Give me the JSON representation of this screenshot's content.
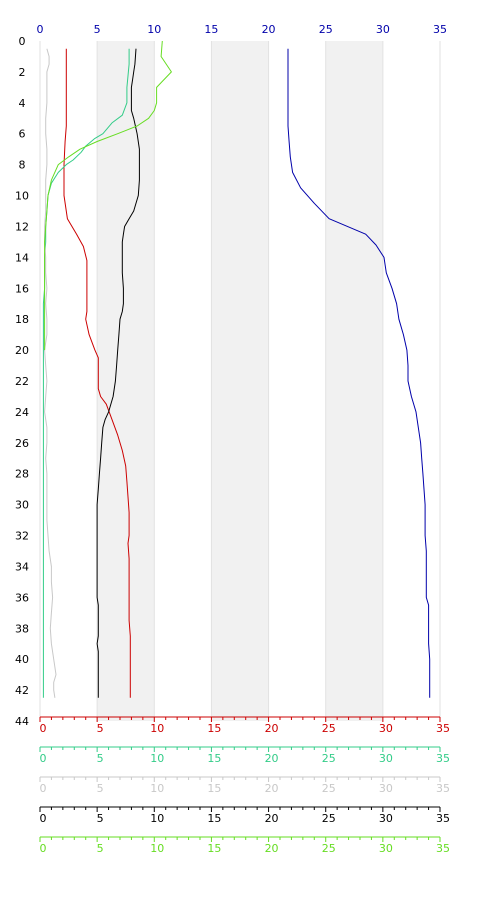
{
  "chart_data": {
    "type": "line",
    "title": "",
    "ylim": [
      44,
      0
    ],
    "xlim": [
      0,
      35
    ],
    "y_ticks": [
      "0",
      "2",
      "4",
      "6",
      "8",
      "10",
      "12",
      "14",
      "16",
      "18",
      "20",
      "22",
      "24",
      "26",
      "28",
      "30",
      "32",
      "34",
      "36",
      "38",
      "40",
      "42",
      "44"
    ],
    "x_ticks": [
      "0",
      "5",
      "10",
      "15",
      "20",
      "25",
      "30",
      "35"
    ],
    "grid": "alternating vertical bands",
    "axis_colors": {
      "top": "#0000aa",
      "red": "#cc0000",
      "teal": "#33cc88",
      "gray": "#c8c8c8",
      "black": "#000000",
      "green": "#66dd22"
    },
    "axes": [
      {
        "id": "red",
        "color": "#cc0000"
      },
      {
        "id": "teal",
        "color": "#33cc88"
      },
      {
        "id": "gray",
        "color": "#c8c8c8"
      },
      {
        "id": "black",
        "color": "#000000"
      },
      {
        "id": "green",
        "color": "#66dd22"
      }
    ],
    "series": [
      {
        "color": "#0000aa",
        "points": [
          [
            21.7,
            0.5
          ],
          [
            21.7,
            2
          ],
          [
            21.7,
            4
          ],
          [
            21.7,
            5.5
          ],
          [
            21.8,
            6.5
          ],
          [
            21.9,
            7.5
          ],
          [
            22.1,
            8.5
          ],
          [
            22.8,
            9.5
          ],
          [
            24,
            10.5
          ],
          [
            25.3,
            11.5
          ],
          [
            28.5,
            12.5
          ],
          [
            29.4,
            13.2
          ],
          [
            30.1,
            14
          ],
          [
            30.3,
            15
          ],
          [
            30.8,
            16
          ],
          [
            31.2,
            17
          ],
          [
            31.4,
            18
          ],
          [
            31.8,
            19
          ],
          [
            32.1,
            20
          ],
          [
            32.2,
            21
          ],
          [
            32.2,
            22
          ],
          [
            32.5,
            23
          ],
          [
            32.9,
            24
          ],
          [
            33.1,
            25
          ],
          [
            33.3,
            26
          ],
          [
            33.4,
            27
          ],
          [
            33.5,
            28
          ],
          [
            33.6,
            29
          ],
          [
            33.7,
            30
          ],
          [
            33.7,
            31
          ],
          [
            33.7,
            32
          ],
          [
            33.8,
            33
          ],
          [
            33.8,
            34
          ],
          [
            33.8,
            35
          ],
          [
            33.8,
            36
          ],
          [
            34,
            36.5
          ],
          [
            34,
            37
          ],
          [
            34,
            38
          ],
          [
            34,
            39
          ],
          [
            34.1,
            40
          ],
          [
            34.1,
            41
          ],
          [
            34.1,
            42
          ],
          [
            34.1,
            42.5
          ]
        ]
      },
      {
        "color": "#cc0000",
        "points": [
          [
            2.3,
            0.5
          ],
          [
            2.3,
            2
          ],
          [
            2.3,
            4
          ],
          [
            2.3,
            5.5
          ],
          [
            2.2,
            6.5
          ],
          [
            2.1,
            8
          ],
          [
            2.1,
            10
          ],
          [
            2.4,
            11.5
          ],
          [
            3.2,
            12.5
          ],
          [
            3.8,
            13.3
          ],
          [
            4.1,
            14.2
          ],
          [
            4.1,
            15.5
          ],
          [
            4.1,
            16.5
          ],
          [
            4.1,
            17.5
          ],
          [
            4,
            18
          ],
          [
            4.3,
            19
          ],
          [
            4.8,
            20
          ],
          [
            5.1,
            20.5
          ],
          [
            5.1,
            21.5
          ],
          [
            5.1,
            22.5
          ],
          [
            5.3,
            23
          ],
          [
            5.8,
            23.5
          ],
          [
            6.3,
            24.5
          ],
          [
            6.8,
            25.5
          ],
          [
            7.2,
            26.5
          ],
          [
            7.5,
            27.5
          ],
          [
            7.6,
            28.5
          ],
          [
            7.7,
            29.5
          ],
          [
            7.8,
            30.5
          ],
          [
            7.8,
            31.5
          ],
          [
            7.8,
            32
          ],
          [
            7.7,
            32.5
          ],
          [
            7.8,
            33.5
          ],
          [
            7.8,
            34.5
          ],
          [
            7.8,
            36
          ],
          [
            7.8,
            37.5
          ],
          [
            7.9,
            38.5
          ],
          [
            7.9,
            40
          ],
          [
            7.9,
            41
          ],
          [
            7.9,
            42.5
          ]
        ]
      },
      {
        "color": "#33cc88",
        "points": [
          [
            7.8,
            0.5
          ],
          [
            7.8,
            1.5
          ],
          [
            7.6,
            3
          ],
          [
            7.6,
            4
          ],
          [
            7.2,
            4.8
          ],
          [
            6.3,
            5.3
          ],
          [
            5.5,
            6
          ],
          [
            4.8,
            6.3
          ],
          [
            4,
            6.8
          ],
          [
            3.6,
            7.2
          ],
          [
            2.9,
            7.7
          ],
          [
            2.3,
            8
          ],
          [
            1.6,
            8.5
          ],
          [
            1,
            9.2
          ],
          [
            0.7,
            10
          ],
          [
            0.6,
            11
          ],
          [
            0.5,
            12
          ],
          [
            0.5,
            13
          ],
          [
            0.4,
            14
          ],
          [
            0.4,
            15
          ],
          [
            0.4,
            16
          ],
          [
            0.3,
            17
          ],
          [
            0.3,
            18
          ],
          [
            0.3,
            20
          ],
          [
            0.3,
            22
          ],
          [
            0.3,
            24
          ],
          [
            0.3,
            26
          ],
          [
            0.3,
            28
          ],
          [
            0.3,
            30
          ],
          [
            0.3,
            32
          ],
          [
            0.3,
            34
          ],
          [
            0.3,
            36
          ],
          [
            0.3,
            38
          ],
          [
            0.3,
            40
          ],
          [
            0.3,
            42
          ],
          [
            0.3,
            42.5
          ]
        ]
      },
      {
        "color": "#c8c8c8",
        "points": [
          [
            0.6,
            0.5
          ],
          [
            0.8,
            1
          ],
          [
            0.8,
            1.5
          ],
          [
            0.6,
            2
          ],
          [
            0.6,
            3
          ],
          [
            0.6,
            4
          ],
          [
            0.5,
            5
          ],
          [
            0.5,
            6
          ],
          [
            0.6,
            7
          ],
          [
            0.6,
            8
          ],
          [
            0.5,
            9
          ],
          [
            0.5,
            10
          ],
          [
            0.5,
            11
          ],
          [
            0.4,
            12
          ],
          [
            0.4,
            13
          ],
          [
            0.5,
            14
          ],
          [
            0.5,
            15
          ],
          [
            0.6,
            16
          ],
          [
            0.5,
            17
          ],
          [
            0.6,
            18
          ],
          [
            0.6,
            19
          ],
          [
            0.4,
            20
          ],
          [
            0.5,
            21
          ],
          [
            0.6,
            22
          ],
          [
            0.5,
            23
          ],
          [
            0.4,
            24
          ],
          [
            0.6,
            25
          ],
          [
            0.6,
            26
          ],
          [
            0.5,
            27
          ],
          [
            0.6,
            28
          ],
          [
            0.6,
            29
          ],
          [
            0.6,
            30
          ],
          [
            0.6,
            31
          ],
          [
            0.7,
            32
          ],
          [
            0.8,
            33
          ],
          [
            1,
            34
          ],
          [
            1,
            35
          ],
          [
            1.1,
            36
          ],
          [
            1,
            37
          ],
          [
            0.9,
            38
          ],
          [
            1,
            39
          ],
          [
            1.2,
            40
          ],
          [
            1.4,
            41
          ],
          [
            1.2,
            41.5
          ],
          [
            1.2,
            42
          ],
          [
            1.3,
            42.5
          ]
        ]
      },
      {
        "color": "#000000",
        "points": [
          [
            8.4,
            0.5
          ],
          [
            8.3,
            1.5
          ],
          [
            8.2,
            2
          ],
          [
            8.1,
            2.5
          ],
          [
            8,
            3
          ],
          [
            8,
            4
          ],
          [
            8,
            4.5
          ],
          [
            8.2,
            5
          ],
          [
            8.5,
            6
          ],
          [
            8.7,
            7
          ],
          [
            8.7,
            8
          ],
          [
            8.7,
            9
          ],
          [
            8.6,
            10
          ],
          [
            8.2,
            11
          ],
          [
            7.8,
            11.5
          ],
          [
            7.4,
            12
          ],
          [
            7.3,
            12.5
          ],
          [
            7.2,
            13
          ],
          [
            7.2,
            14
          ],
          [
            7.2,
            15
          ],
          [
            7.3,
            16
          ],
          [
            7.3,
            17
          ],
          [
            7.2,
            17.5
          ],
          [
            7,
            18
          ],
          [
            6.9,
            19
          ],
          [
            6.8,
            20
          ],
          [
            6.7,
            21
          ],
          [
            6.6,
            22
          ],
          [
            6.4,
            23
          ],
          [
            6,
            24
          ],
          [
            5.7,
            24.5
          ],
          [
            5.5,
            25
          ],
          [
            5.4,
            26
          ],
          [
            5.3,
            27
          ],
          [
            5.2,
            28
          ],
          [
            5.1,
            29
          ],
          [
            5,
            30
          ],
          [
            5,
            31
          ],
          [
            5,
            32
          ],
          [
            5,
            33
          ],
          [
            5,
            34
          ],
          [
            5,
            35
          ],
          [
            5,
            36
          ],
          [
            5.1,
            36.5
          ],
          [
            5.1,
            37
          ],
          [
            5.1,
            38
          ],
          [
            5.1,
            38.5
          ],
          [
            5,
            39
          ],
          [
            5.1,
            39.5
          ],
          [
            5.1,
            40
          ],
          [
            5.1,
            41
          ],
          [
            5.1,
            42.5
          ]
        ]
      },
      {
        "color": "#66dd22",
        "points": [
          [
            10.7,
            0
          ],
          [
            10.6,
            1
          ],
          [
            11.5,
            2
          ],
          [
            10.2,
            3
          ],
          [
            10.2,
            4
          ],
          [
            10,
            4.5
          ],
          [
            9.5,
            5
          ],
          [
            8.5,
            5.5
          ],
          [
            6.8,
            6
          ],
          [
            5,
            6.5
          ],
          [
            3.5,
            7
          ],
          [
            2.5,
            7.5
          ],
          [
            1.6,
            8
          ],
          [
            1,
            9
          ],
          [
            0.7,
            10
          ],
          [
            0.6,
            11
          ],
          [
            0.5,
            12
          ],
          [
            0.4,
            13
          ],
          [
            0.4,
            14
          ],
          [
            0.4,
            15
          ],
          [
            0.4,
            16
          ],
          [
            0.4,
            17
          ],
          [
            0.4,
            18
          ],
          [
            0.4,
            19
          ],
          [
            0.4,
            20
          ]
        ]
      }
    ]
  }
}
